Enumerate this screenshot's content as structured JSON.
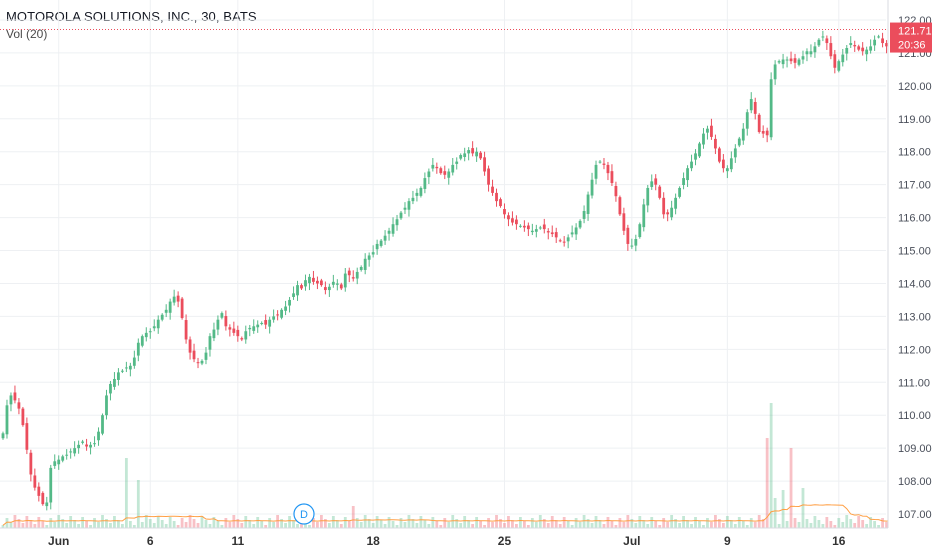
{
  "header": {
    "title": "MOTOROLA SOLUTIONS, INC., 30, BATS",
    "volume_label": "Vol (20)"
  },
  "price_tag": {
    "last_price": "121.71",
    "countdown": "20:36"
  },
  "event_marker": {
    "label": "D"
  },
  "colors": {
    "up": "#53b987",
    "down": "#eb4d5c",
    "grid": "#eef0f3",
    "price_line": "#eb4d5c",
    "volume_ma": "#ff9e42"
  },
  "chart_data": {
    "type": "candlestick",
    "symbol": "MOTOROLA SOLUTIONS, INC.",
    "interval": "30",
    "exchange": "BATS",
    "y_ticks": [
      "107.00",
      "108.00",
      "109.00",
      "110.00",
      "111.00",
      "112.00",
      "113.00",
      "114.00",
      "115.00",
      "116.00",
      "117.00",
      "118.00",
      "119.00",
      "120.00",
      "121.00",
      "122.00"
    ],
    "ylim": [
      106.6,
      122.2
    ],
    "x_ticks": [
      "Jun",
      "6",
      "11",
      "18",
      "25",
      "Jul",
      "9",
      "16"
    ],
    "x_tick_bar_index": [
      14,
      37,
      59,
      93,
      126,
      158,
      182,
      210
    ],
    "grid": true,
    "close": [
      109.45,
      110.3,
      110.6,
      110.45,
      110.2,
      109.7,
      108.95,
      108.2,
      107.8,
      107.55,
      107.3,
      107.35,
      108.4,
      108.6,
      108.65,
      108.75,
      108.8,
      108.9,
      109,
      109.1,
      109.2,
      109.05,
      109.1,
      109.15,
      109.5,
      110,
      110.6,
      110.95,
      111.1,
      111.3,
      111.35,
      111.45,
      111.5,
      111.75,
      112.2,
      112.4,
      112.5,
      112.55,
      112.7,
      112.9,
      113.05,
      113.2,
      113.45,
      113.6,
      113.45,
      112.95,
      112.3,
      111.9,
      111.7,
      111.6,
      111.65,
      111.9,
      112.4,
      112.6,
      112.9,
      113.1,
      112.7,
      112.6,
      112.5,
      112.4,
      112.3,
      112.55,
      112.65,
      112.7,
      112.75,
      112.8,
      112.75,
      112.9,
      113,
      113.05,
      113.2,
      113.3,
      113.5,
      113.7,
      113.95,
      113.85,
      114.1,
      114.2,
      114.05,
      114,
      113.95,
      113.8,
      113.9,
      114.05,
      114,
      113.85,
      114.3,
      114.25,
      114.15,
      114.35,
      114.5,
      114.75,
      114.85,
      114.95,
      115.2,
      115.3,
      115.45,
      115.6,
      115.8,
      115.95,
      116.15,
      116.3,
      116.5,
      116.6,
      116.75,
      116.9,
      117.2,
      117.4,
      117.6,
      117.5,
      117.35,
      117.3,
      117.4,
      117.6,
      117.7,
      117.9,
      117.95,
      118.05,
      117.95,
      118,
      117.8,
      117.4,
      117,
      116.75,
      116.5,
      116.35,
      116.1,
      115.95,
      115.85,
      115.8,
      115.75,
      115.7,
      115.65,
      115.6,
      115.65,
      115.7,
      115.65,
      115.55,
      115.5,
      115.4,
      115.3,
      115.25,
      115.4,
      115.55,
      115.7,
      115.9,
      116.2,
      116.7,
      117.15,
      117.6,
      117.7,
      117.6,
      117.35,
      117.05,
      116.65,
      116.1,
      115.6,
      115.2,
      115.15,
      115.35,
      115.8,
      116.4,
      116.9,
      117.1,
      117,
      116.6,
      116.1,
      116.1,
      116.3,
      116.6,
      116.9,
      117.2,
      117.5,
      117.7,
      117.95,
      118.25,
      118.55,
      118.7,
      118.45,
      118.1,
      117.7,
      117.5,
      117.5,
      117.8,
      118.1,
      118.4,
      118.7,
      119.2,
      119.6,
      119.15,
      118.6,
      118.55,
      118.5,
      120.2,
      120.65,
      120.75,
      120.8,
      120.8,
      120.75,
      120.7,
      120.8,
      120.9,
      121.05,
      121.05,
      121.2,
      121.4,
      121.5,
      121.3,
      120.9,
      120.55,
      120.75,
      120.95,
      121.15,
      121.3,
      121.2,
      121.1,
      121.05,
      121.1,
      121.2,
      121.4,
      121.5,
      121.3,
      121.2,
      121.4,
      121.71
    ],
    "volume_ma_note": "Vol (20) moving average",
    "last_price": 121.71
  }
}
